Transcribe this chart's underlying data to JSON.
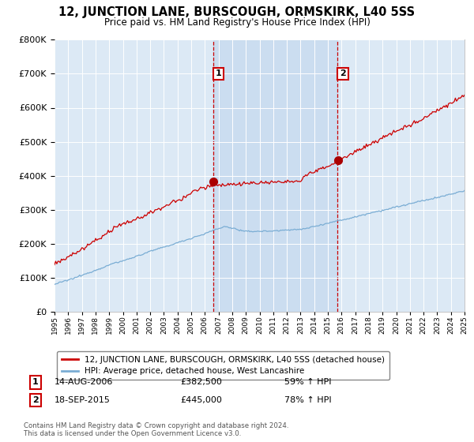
{
  "title": "12, JUNCTION LANE, BURSCOUGH, ORMSKIRK, L40 5SS",
  "subtitle": "Price paid vs. HM Land Registry's House Price Index (HPI)",
  "legend_label_red": "12, JUNCTION LANE, BURSCOUGH, ORMSKIRK, L40 5SS (detached house)",
  "legend_label_blue": "HPI: Average price, detached house, West Lancashire",
  "annotation1_date": "14-AUG-2006",
  "annotation1_price": "£382,500",
  "annotation1_hpi": "59% ↑ HPI",
  "annotation2_date": "18-SEP-2015",
  "annotation2_price": "£445,000",
  "annotation2_hpi": "78% ↑ HPI",
  "footer": "Contains HM Land Registry data © Crown copyright and database right 2024.\nThis data is licensed under the Open Government Licence v3.0.",
  "sale1_year": 2006.62,
  "sale1_value": 382500,
  "sale2_year": 2015.72,
  "sale2_value": 445000,
  "ylim": [
    0,
    800000
  ],
  "yticks": [
    0,
    100000,
    200000,
    300000,
    400000,
    500000,
    600000,
    700000,
    800000
  ],
  "bg_color": "#dce9f5",
  "shade_color": "#c5d9ee",
  "grid_color": "#ffffff",
  "red_color": "#cc0000",
  "blue_color": "#7aadd4",
  "sale_marker_color": "#aa0000",
  "vline_color": "#cc0000",
  "box_color": "#cc0000"
}
